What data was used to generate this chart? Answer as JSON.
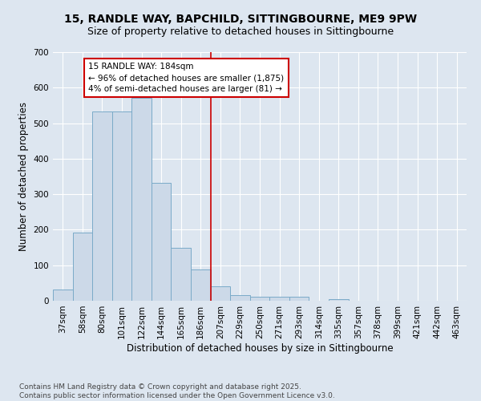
{
  "title": "15, RANDLE WAY, BAPCHILD, SITTINGBOURNE, ME9 9PW",
  "subtitle": "Size of property relative to detached houses in Sittingbourne",
  "xlabel": "Distribution of detached houses by size in Sittingbourne",
  "ylabel": "Number of detached properties",
  "categories": [
    "37sqm",
    "58sqm",
    "80sqm",
    "101sqm",
    "122sqm",
    "144sqm",
    "165sqm",
    "186sqm",
    "207sqm",
    "229sqm",
    "250sqm",
    "271sqm",
    "293sqm",
    "314sqm",
    "335sqm",
    "357sqm",
    "378sqm",
    "399sqm",
    "421sqm",
    "442sqm",
    "463sqm"
  ],
  "values": [
    32,
    193,
    533,
    533,
    572,
    333,
    148,
    88,
    40,
    15,
    12,
    12,
    12,
    0,
    5,
    0,
    0,
    0,
    0,
    0,
    0
  ],
  "bar_color": "#ccd9e8",
  "bar_edge_color": "#7aaac8",
  "vline_index": 7,
  "vline_color": "#cc0000",
  "annotation_text": "15 RANDLE WAY: 184sqm\n← 96% of detached houses are smaller (1,875)\n4% of semi-detached houses are larger (81) →",
  "annotation_box_color": "#cc0000",
  "background_color": "#dde6f0",
  "grid_color": "#ffffff",
  "footer_text": "Contains HM Land Registry data © Crown copyright and database right 2025.\nContains public sector information licensed under the Open Government Licence v3.0.",
  "ylim": [
    0,
    700
  ],
  "yticks": [
    0,
    100,
    200,
    300,
    400,
    500,
    600,
    700
  ],
  "title_fontsize": 10,
  "subtitle_fontsize": 9,
  "xlabel_fontsize": 8.5,
  "ylabel_fontsize": 8.5,
  "tick_fontsize": 7.5,
  "annotation_fontsize": 7.5,
  "footer_fontsize": 6.5
}
